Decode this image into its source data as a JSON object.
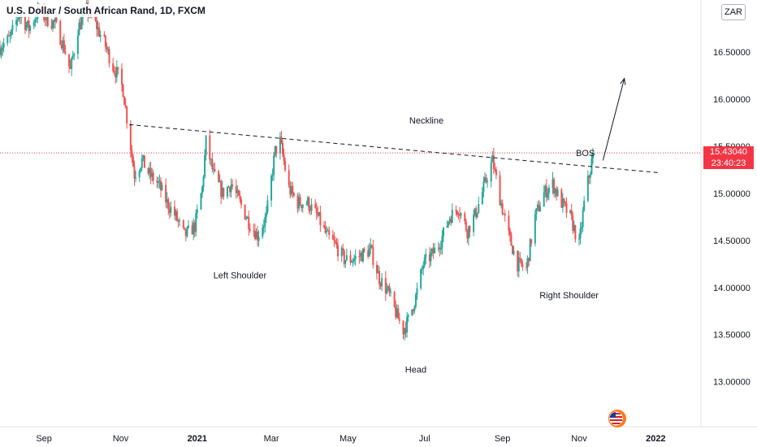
{
  "header": {
    "title": "U.S. Dollar / South African Rand, 1D, FXCM",
    "currency_badge": "ZAR"
  },
  "price_tag": {
    "price": "15.43040",
    "countdown": "23:40:23",
    "color": "#f23645"
  },
  "colors": {
    "up": "#26a69a",
    "down": "#ef5350",
    "annotation": "#131722",
    "price_line": "#f23645"
  },
  "chart_data": {
    "type": "candlestick",
    "ylim": [
      12.6,
      16.95
    ],
    "y_ticks": [
      13.0,
      13.5,
      14.0,
      14.5,
      15.0,
      15.5,
      16.0,
      16.5
    ],
    "y_tick_labels": [
      "13.00000",
      "13.50000",
      "14.00000",
      "14.50000",
      "15.00000",
      "15.50000",
      "16.00000",
      "16.50000"
    ],
    "x_ticks": [
      {
        "label": "Sep",
        "date": "2020-09-01",
        "bold": false
      },
      {
        "label": "Nov",
        "date": "2020-11-01",
        "bold": false
      },
      {
        "label": "2021",
        "date": "2021-01-01",
        "bold": true
      },
      {
        "label": "Mar",
        "date": "2021-03-01",
        "bold": false
      },
      {
        "label": "May",
        "date": "2021-05-01",
        "bold": false
      },
      {
        "label": "Jul",
        "date": "2021-07-01",
        "bold": false
      },
      {
        "label": "Sep",
        "date": "2021-09-01",
        "bold": false
      },
      {
        "label": "Nov",
        "date": "2021-11-01",
        "bold": false
      },
      {
        "label": "2022",
        "date": "2022-01-01",
        "bold": true
      }
    ],
    "x_range": [
      "2020-07-28",
      "2022-02-06"
    ],
    "last_price": 15.4304,
    "close_path": [
      [
        "2020-07-28",
        16.55
      ],
      [
        "2020-08-05",
        16.65
      ],
      [
        "2020-08-12",
        16.9
      ],
      [
        "2020-08-20",
        16.75
      ],
      [
        "2020-08-28",
        16.95
      ],
      [
        "2020-09-03",
        16.85
      ],
      [
        "2020-09-10",
        16.8
      ],
      [
        "2020-09-17",
        16.55
      ],
      [
        "2020-09-22",
        16.3
      ],
      [
        "2020-09-28",
        16.75
      ],
      [
        "2020-10-05",
        16.95
      ],
      [
        "2020-10-12",
        16.8
      ],
      [
        "2020-10-19",
        16.6
      ],
      [
        "2020-10-26",
        16.35
      ],
      [
        "2020-10-30",
        16.25
      ],
      [
        "2020-11-03",
        16.1
      ],
      [
        "2020-11-09",
        15.5
      ],
      [
        "2020-11-12",
        15.2
      ],
      [
        "2020-11-18",
        15.35
      ],
      [
        "2020-11-24",
        15.2
      ],
      [
        "2020-12-01",
        15.1
      ],
      [
        "2020-12-08",
        14.9
      ],
      [
        "2020-12-15",
        14.75
      ],
      [
        "2020-12-22",
        14.55
      ],
      [
        "2020-12-30",
        14.65
      ],
      [
        "2021-01-05",
        15.05
      ],
      [
        "2021-01-08",
        15.55
      ],
      [
        "2021-01-14",
        15.2
      ],
      [
        "2021-01-21",
        15.0
      ],
      [
        "2021-01-28",
        15.1
      ],
      [
        "2021-02-04",
        14.9
      ],
      [
        "2021-02-11",
        14.7
      ],
      [
        "2021-02-18",
        14.55
      ],
      [
        "2021-02-25",
        14.75
      ],
      [
        "2021-03-04",
        15.45
      ],
      [
        "2021-03-08",
        15.55
      ],
      [
        "2021-03-15",
        15.05
      ],
      [
        "2021-03-22",
        14.9
      ],
      [
        "2021-03-30",
        14.9
      ],
      [
        "2021-04-07",
        14.75
      ],
      [
        "2021-04-14",
        14.55
      ],
      [
        "2021-04-21",
        14.45
      ],
      [
        "2021-04-28",
        14.3
      ],
      [
        "2021-05-05",
        14.3
      ],
      [
        "2021-05-12",
        14.35
      ],
      [
        "2021-05-19",
        14.4
      ],
      [
        "2021-05-26",
        14.1
      ],
      [
        "2021-06-02",
        13.95
      ],
      [
        "2021-06-09",
        13.7
      ],
      [
        "2021-06-14",
        13.55
      ],
      [
        "2021-06-18",
        13.65
      ],
      [
        "2021-06-24",
        13.9
      ],
      [
        "2021-06-30",
        14.25
      ],
      [
        "2021-07-07",
        14.35
      ],
      [
        "2021-07-14",
        14.5
      ],
      [
        "2021-07-21",
        14.75
      ],
      [
        "2021-07-28",
        14.85
      ],
      [
        "2021-08-04",
        14.6
      ],
      [
        "2021-08-11",
        14.8
      ],
      [
        "2021-08-18",
        15.1
      ],
      [
        "2021-08-24",
        15.35
      ],
      [
        "2021-08-30",
        14.95
      ],
      [
        "2021-09-06",
        14.55
      ],
      [
        "2021-09-13",
        14.25
      ],
      [
        "2021-09-20",
        14.2
      ],
      [
        "2021-09-27",
        14.75
      ],
      [
        "2021-10-04",
        15.0
      ],
      [
        "2021-10-11",
        15.1
      ],
      [
        "2021-10-18",
        14.9
      ],
      [
        "2021-10-25",
        14.75
      ],
      [
        "2021-11-01",
        14.45
      ],
      [
        "2021-11-06",
        15.0
      ],
      [
        "2021-11-10",
        15.25
      ],
      [
        "2021-11-12",
        15.43
      ]
    ],
    "annotations": {
      "neckline": {
        "label": "Neckline",
        "from": [
          "2020-11-08",
          15.73
        ],
        "to": [
          "2022-01-03",
          15.22
        ],
        "style": "dashed"
      },
      "breakout_arrow": {
        "from": [
          "2021-11-20",
          15.35
        ],
        "to": [
          "2021-12-07",
          16.22
        ]
      },
      "labels": [
        {
          "text": "Left Shoulder",
          "date": "2021-02-04",
          "value": 14.13
        },
        {
          "text": "Head",
          "date": "2021-06-24",
          "value": 13.13
        },
        {
          "text": "Right Shoulder",
          "date": "2021-10-24",
          "value": 13.92
        },
        {
          "text": "BOS",
          "date": "2021-11-06",
          "value": 15.43
        }
      ]
    }
  }
}
